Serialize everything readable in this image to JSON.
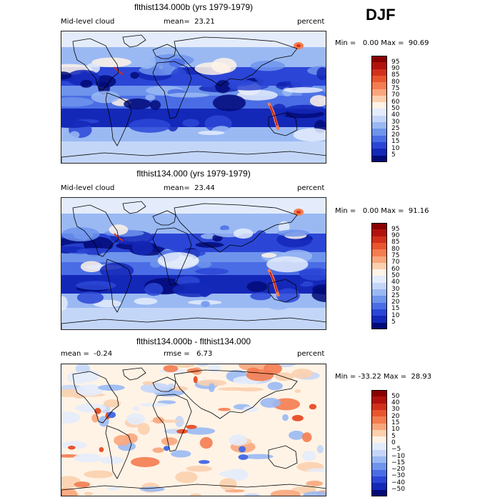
{
  "season": "DJF",
  "panels": [
    {
      "title": "flthist134.000b (yrs 1979-1979)",
      "left_label": "Mid-level cloud",
      "mid_label": "mean=  23.21",
      "right_label": "percent",
      "minmax": "Min =   0.00 Max =  90.69",
      "kind": "abs",
      "colorbar": {
        "labels": [
          "95",
          "90",
          "85",
          "80",
          "75",
          "70",
          "60",
          "50",
          "40",
          "30",
          "25",
          "20",
          "15",
          "10",
          "5"
        ],
        "colors": [
          "#8b0000",
          "#b1120c",
          "#d2301c",
          "#e8552f",
          "#f47c50",
          "#f9a67c",
          "#fbd0ae",
          "#fff3e6",
          "#e4ecfb",
          "#c4d6f8",
          "#9ab9f3",
          "#6e94ec",
          "#4a6de5",
          "#2b46d6",
          "#1428b8",
          "#020a78"
        ]
      }
    },
    {
      "title": "flthist134.000 (yrs 1979-1979)",
      "left_label": "Mid-level cloud",
      "mid_label": "mean=  23.44",
      "right_label": "percent",
      "minmax": "Min =   0.00 Max =  91.16",
      "kind": "abs",
      "colorbar": {
        "labels": [
          "95",
          "90",
          "85",
          "80",
          "75",
          "70",
          "60",
          "50",
          "40",
          "30",
          "25",
          "20",
          "15",
          "10",
          "5"
        ],
        "colors": [
          "#8b0000",
          "#b1120c",
          "#d2301c",
          "#e8552f",
          "#f47c50",
          "#f9a67c",
          "#fbd0ae",
          "#fff3e6",
          "#e4ecfb",
          "#c4d6f8",
          "#9ab9f3",
          "#6e94ec",
          "#4a6de5",
          "#2b46d6",
          "#1428b8",
          "#020a78"
        ]
      }
    },
    {
      "title": "flthist134.000b - flthist134.000",
      "left_label": "mean =  -0.24",
      "mid_label": "rmse =   6.73",
      "right_label": "percent",
      "minmax": "Min = -33.22 Max =  28.93",
      "kind": "diff",
      "colorbar": {
        "labels": [
          "50",
          "40",
          "30",
          "20",
          "15",
          "10",
          "5",
          "0",
          "−5",
          "−10",
          "−15",
          "−20",
          "−30",
          "−40",
          "−50"
        ],
        "colors": [
          "#8b0000",
          "#b1120c",
          "#d2301c",
          "#e8552f",
          "#f47c50",
          "#f9a67c",
          "#fbd0ae",
          "#fff3e6",
          "#e4ecfb",
          "#c4d6f8",
          "#9ab9f3",
          "#6e94ec",
          "#4a6de5",
          "#2b46d6",
          "#1428b8",
          "#020a78"
        ]
      }
    }
  ]
}
